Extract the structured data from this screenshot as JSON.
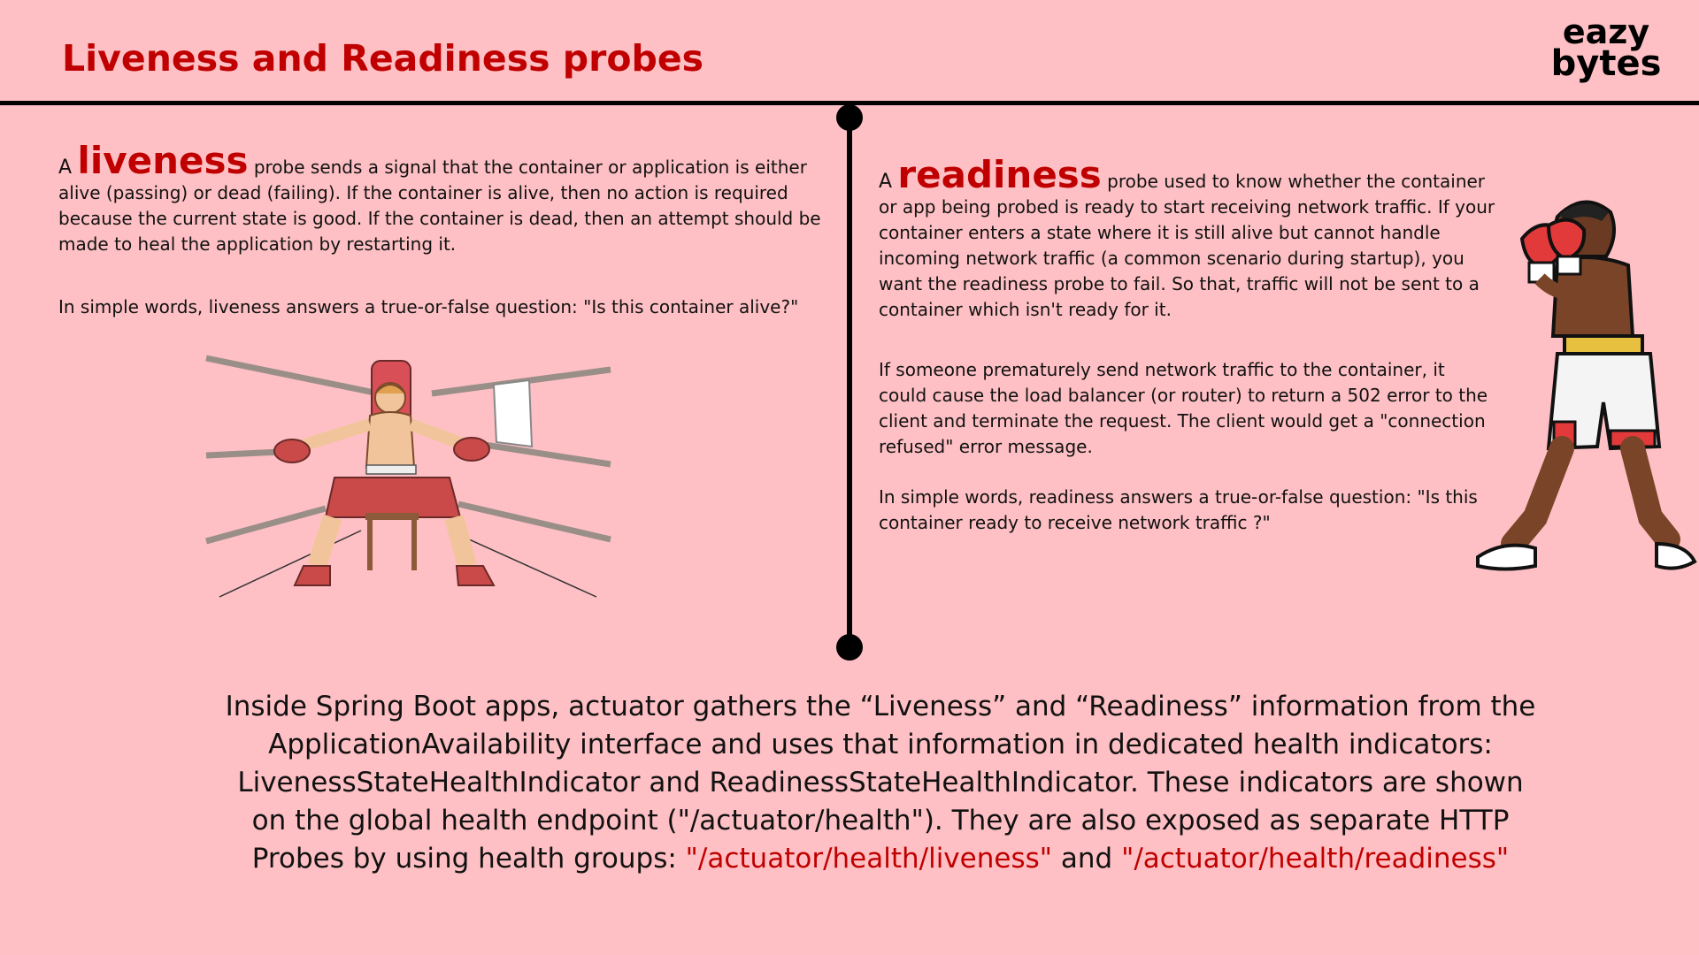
{
  "header": {
    "title": "Liveness and Readiness probes",
    "logo_line1": "eazy",
    "logo_line2": "bytes"
  },
  "left": {
    "prefix": "A",
    "keyword": "liveness",
    "paragraph1_rest": "probe sends a signal that the container or application is either alive (passing) or dead (failing). If the container is alive, then no action is required because the current state is good. If the container is dead, then an attempt should be made to heal the application by restarting it.",
    "paragraph2": "In simple words, liveness answers a true-or-false question: \"Is this container alive?\""
  },
  "right": {
    "prefix": "A",
    "keyword": "readiness",
    "paragraph1_rest": "probe used to know whether the container or app being probed is ready to start receiving network traffic. If your container enters a state where it is still alive but cannot handle incoming network traffic (a common scenario during startup), you want the readiness probe to fail. So that, traffic will not be sent to a container which isn't ready for it.",
    "paragraph2": "If someone prematurely send network traffic to the container, it could cause the load balancer (or router) to return a 502 error to the client and terminate the request. The client would get a \"connection refused\" error message.",
    "paragraph3": "In simple words, readiness answers a true-or-false question: \"Is this container ready to receive network traffic ?\""
  },
  "footer": {
    "text": "Inside Spring Boot apps, actuator gathers the “Liveness” and “Readiness” information from the ApplicationAvailability interface and uses that information in dedicated health indicators: LivenessStateHealthIndicator and ReadinessStateHealthIndicator. These indicators are shown on the global health endpoint (\"/actuator/health\"). They are also exposed as separate HTTP Probes by using health groups:",
    "liveness_path": "\"/actuator/health/liveness\"",
    "and_word": "and",
    "readiness_path": "\"/actuator/health/readiness\""
  },
  "colors": {
    "background": "#fec0c4",
    "accent_red": "#c00000",
    "text": "#111111"
  },
  "illustrations": {
    "left": "tired-boxer-in-ring-corner",
    "right": "boxer-in-fighting-stance"
  }
}
